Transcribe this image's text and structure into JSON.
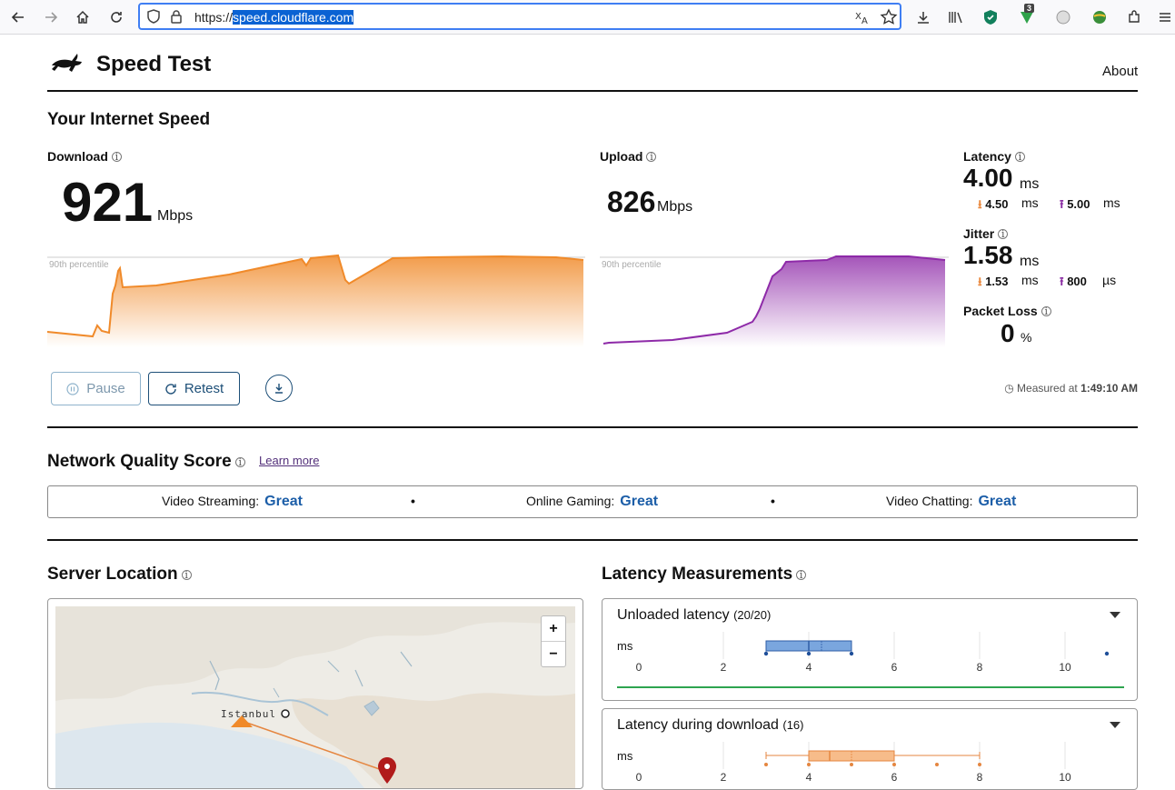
{
  "browser": {
    "url_prefix": "https://",
    "url_host": "speed.cloudflare.com",
    "extension_badge": "3"
  },
  "header": {
    "title": "Speed Test",
    "about": "About"
  },
  "speed": {
    "title": "Your Internet Speed",
    "download": {
      "label": "Download",
      "value": "921",
      "unit": "Mbps"
    },
    "upload": {
      "label": "Upload",
      "value": "826",
      "unit": "Mbps"
    },
    "percentile_label": "90th percentile",
    "latency": {
      "label": "Latency",
      "value": "4.00",
      "unit": "ms",
      "down": "4.50",
      "down_unit": "ms",
      "up": "5.00",
      "up_unit": "ms"
    },
    "jitter": {
      "label": "Jitter",
      "value": "1.58",
      "unit": "ms",
      "down": "1.53",
      "down_unit": "ms",
      "up": "800",
      "up_unit": "µs"
    },
    "packet_loss": {
      "label": "Packet Loss",
      "value": "0",
      "unit": "%"
    },
    "pause": "Pause",
    "retest": "Retest",
    "measured_prefix": "Measured at",
    "measured_time": "1:49:10 AM"
  },
  "quality": {
    "title": "Network Quality Score",
    "learn_more": "Learn more",
    "items": [
      {
        "label": "Video Streaming:",
        "grade": "Great"
      },
      {
        "label": "Online Gaming:",
        "grade": "Great"
      },
      {
        "label": "Video Chatting:",
        "grade": "Great"
      }
    ]
  },
  "server": {
    "title": "Server Location",
    "city": "Istanbul",
    "zoom_in": "+",
    "zoom_out": "−"
  },
  "latency_measurements": {
    "title": "Latency Measurements",
    "unit_label": "ms",
    "panels": [
      {
        "title": "Unloaded latency",
        "count": "(20/20)",
        "ticks": [
          "0",
          "2",
          "4",
          "6",
          "8",
          "10"
        ]
      },
      {
        "title": "Latency during download",
        "count": "(16)",
        "ticks": [
          "0",
          "2",
          "4",
          "6",
          "8",
          "10"
        ]
      }
    ]
  },
  "colors": {
    "download": "#f08a2a",
    "upload": "#8e2aa8",
    "grade": "#1c5ea8",
    "link": "#522f7a"
  }
}
